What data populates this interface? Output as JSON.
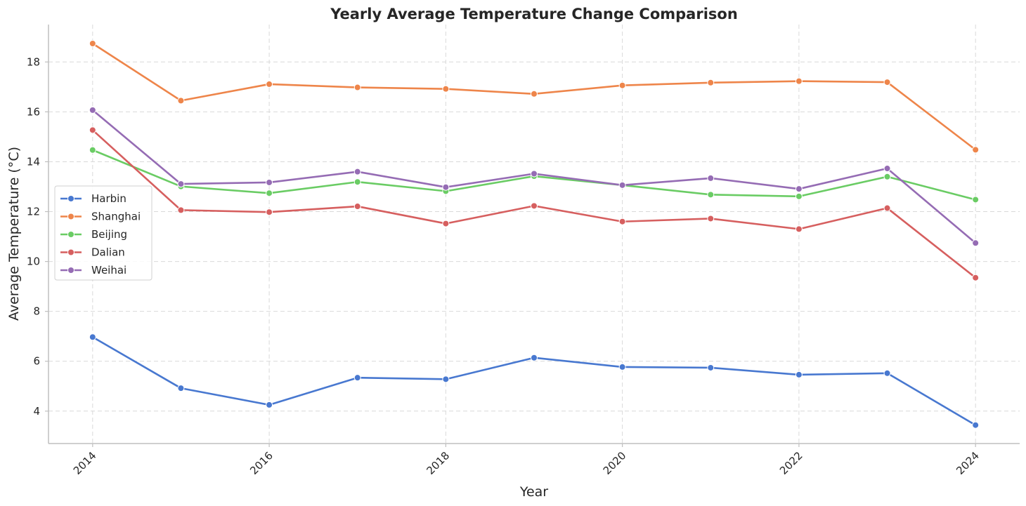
{
  "chart_data": {
    "type": "line",
    "title": "Yearly Average Temperature Change Comparison",
    "xlabel": "Year",
    "ylabel": "Average Temperature (°C)",
    "x": [
      2014,
      2015,
      2016,
      2017,
      2018,
      2019,
      2020,
      2021,
      2022,
      2023,
      2024
    ],
    "xticks": [
      "2014",
      "2016",
      "2018",
      "2020",
      "2022",
      "2024"
    ],
    "yticks": [
      "4",
      "6",
      "8",
      "10",
      "12",
      "14",
      "16",
      "18"
    ],
    "xlim": [
      2013.5,
      2024.5
    ],
    "ylim": [
      2.7,
      19.5
    ],
    "grid": true,
    "legend_position": "center-left",
    "series": [
      {
        "name": "Harbin",
        "color": "#4878d0",
        "values": [
          6.97,
          4.92,
          4.25,
          5.34,
          5.28,
          6.14,
          5.77,
          5.74,
          5.46,
          5.52,
          3.44
        ]
      },
      {
        "name": "Shanghai",
        "color": "#ee854a",
        "values": [
          18.74,
          16.45,
          17.11,
          16.98,
          16.92,
          16.72,
          17.06,
          17.17,
          17.23,
          17.19,
          14.48
        ]
      },
      {
        "name": "Beijing",
        "color": "#6acc64",
        "values": [
          14.47,
          13.01,
          12.74,
          13.19,
          12.82,
          13.42,
          13.06,
          12.68,
          12.61,
          13.4,
          12.48
        ]
      },
      {
        "name": "Dalian",
        "color": "#d65f5f",
        "values": [
          15.27,
          12.06,
          11.98,
          12.21,
          11.52,
          12.23,
          11.6,
          11.72,
          11.3,
          12.14,
          9.35
        ]
      },
      {
        "name": "Weihai",
        "color": "#956cb4",
        "values": [
          16.07,
          13.11,
          13.17,
          13.6,
          12.98,
          13.52,
          13.06,
          13.34,
          12.91,
          13.73,
          10.74
        ]
      }
    ]
  }
}
